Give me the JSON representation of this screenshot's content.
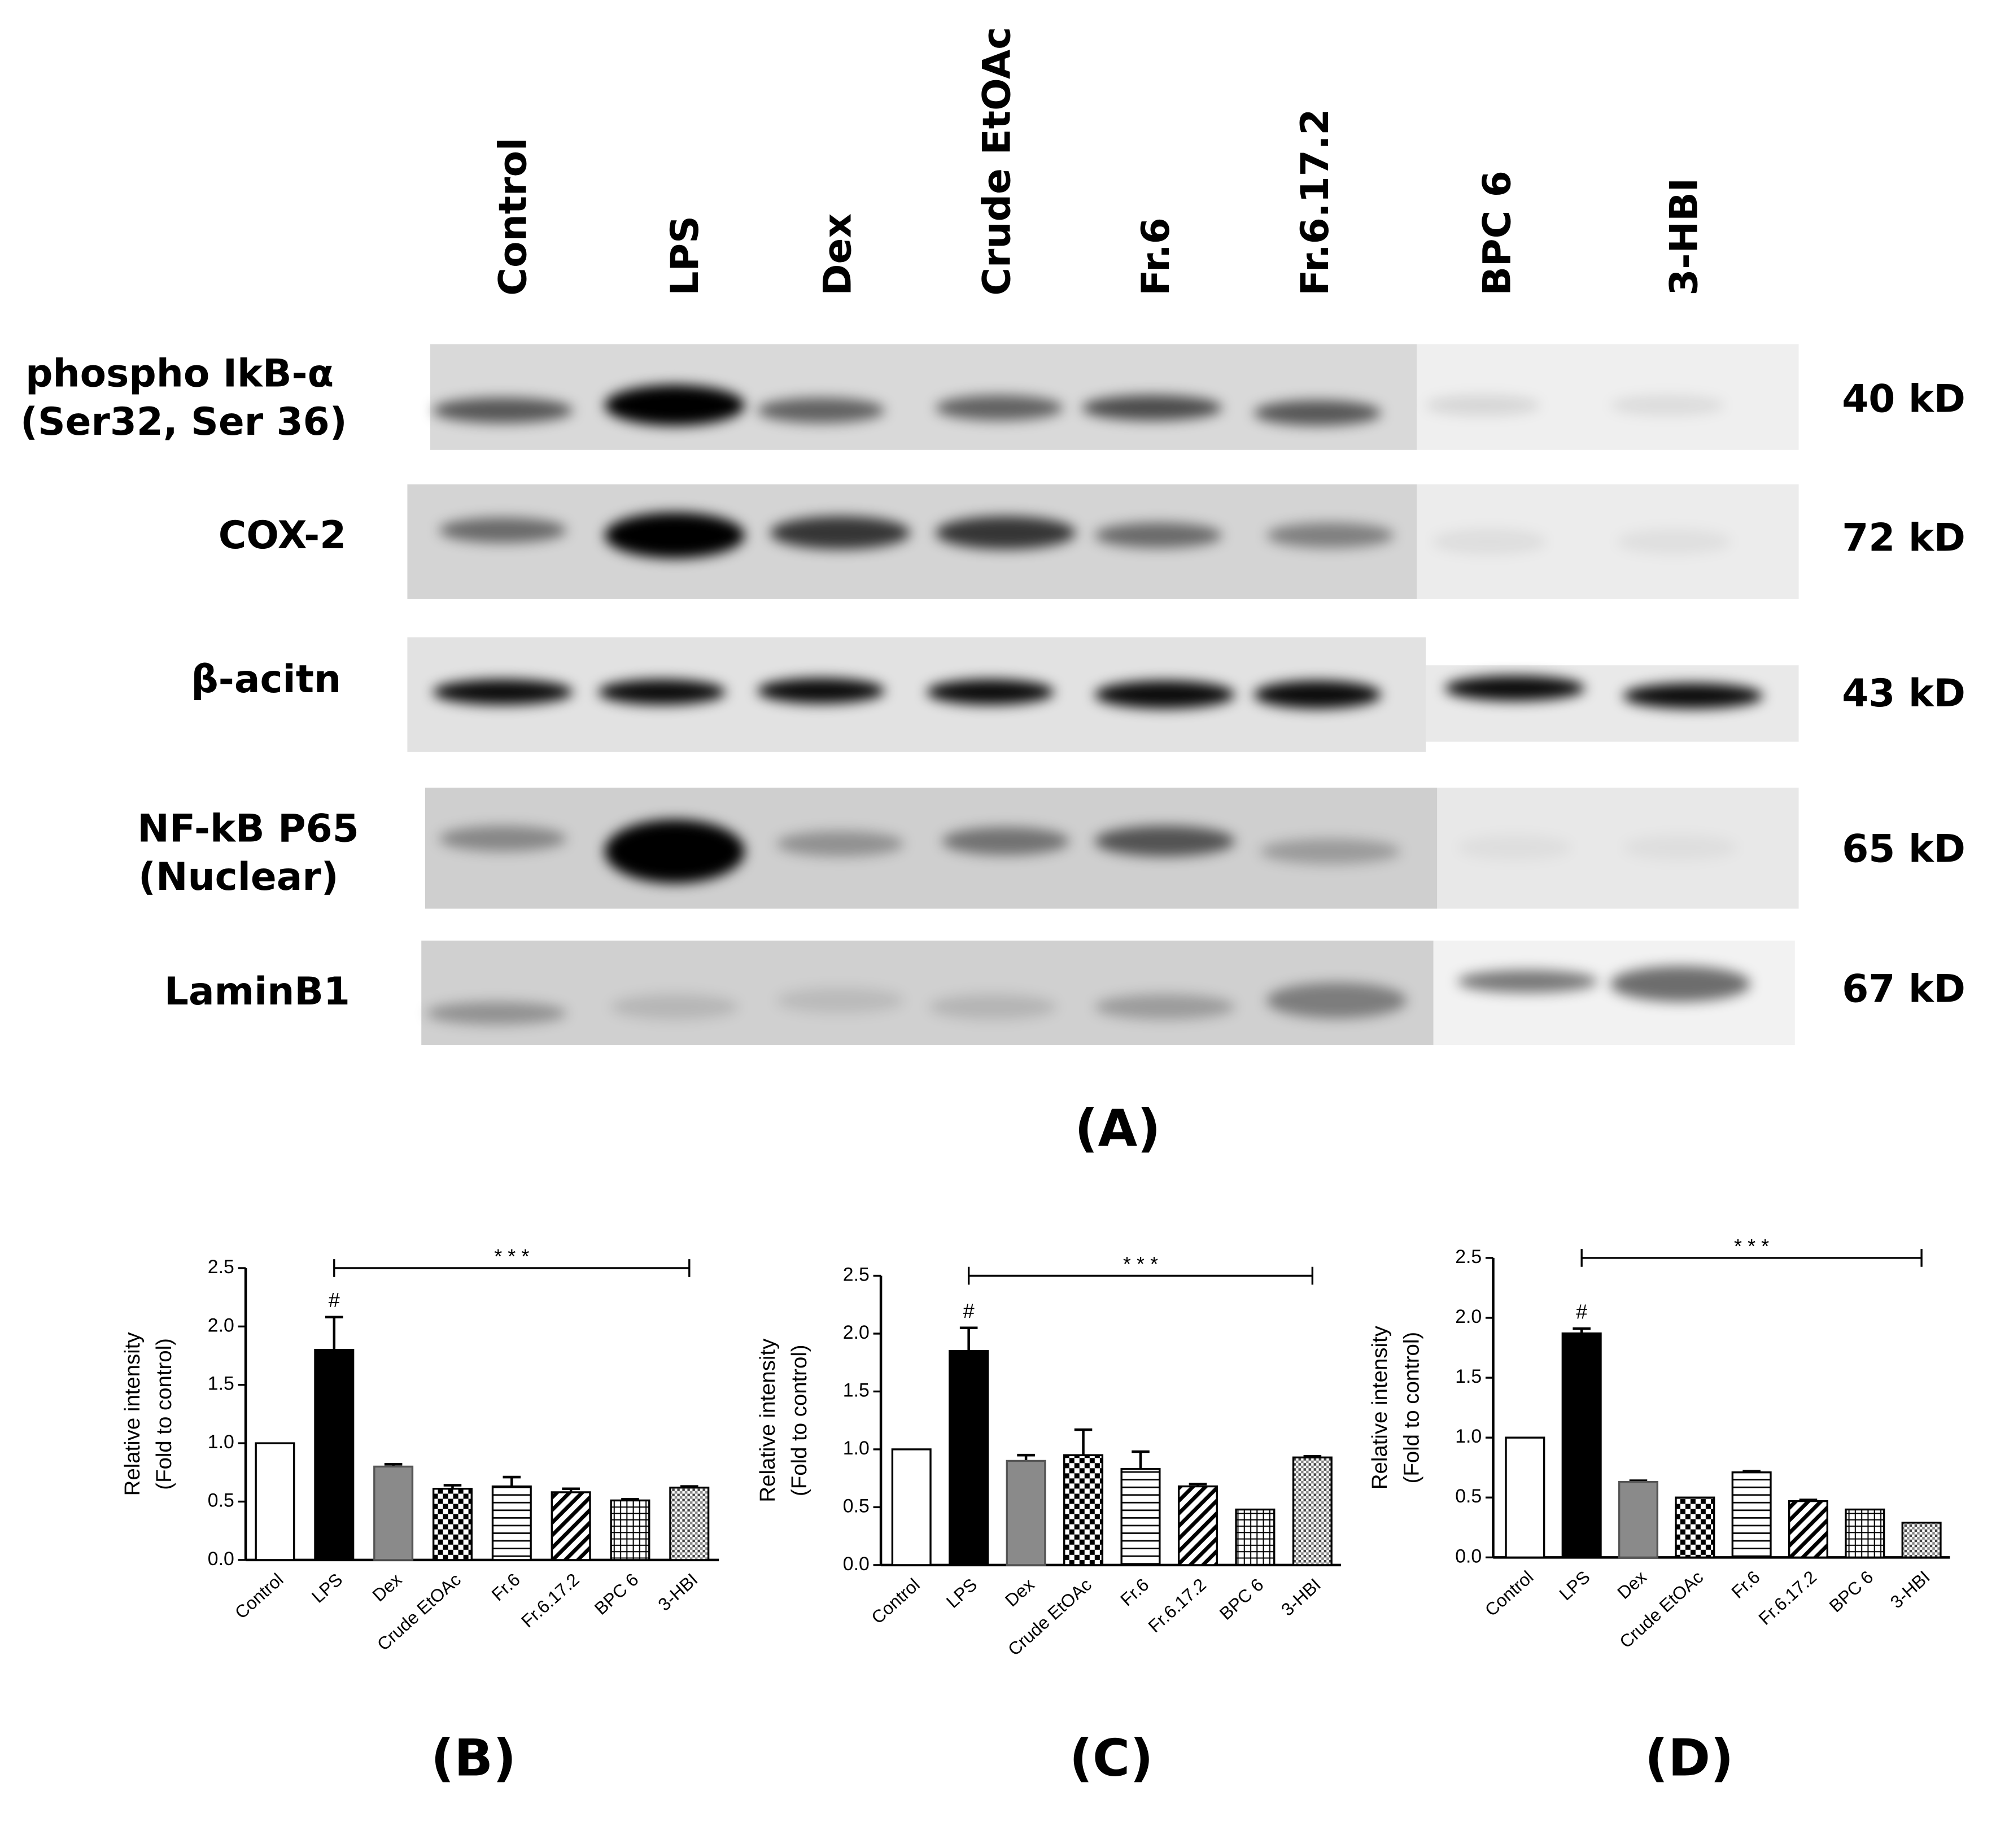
{
  "blot": {
    "lanes": [
      "Control",
      "LPS",
      "Dex",
      "Crude EtOAc",
      "Fr.6",
      "Fr.6.17.2",
      "BPC 6",
      "3-HBI"
    ],
    "rows": [
      {
        "protein": [
          "phospho IkB-α",
          "(Ser32, Ser 36)"
        ],
        "size": "40 kD"
      },
      {
        "protein": [
          "COX-2"
        ],
        "size": "72 kD"
      },
      {
        "protein": [
          "β-acitn"
        ],
        "size": "43 kD"
      },
      {
        "protein": [
          "NF-kB P65",
          "(Nuclear)"
        ],
        "size": "65 kD"
      },
      {
        "protein": [
          "LaminB1"
        ],
        "size": "67 kD"
      }
    ],
    "panel": "(A)"
  },
  "chart_data": [
    {
      "type": "bar",
      "panel": "(B)",
      "ylabel": [
        "Relative intensity",
        "(Fold to control)"
      ],
      "categories": [
        "Control",
        "LPS",
        "Dex",
        "Crude EtOAc",
        "Fr.6",
        "Fr.6.17.2",
        "BPC 6",
        "3-HBI"
      ],
      "values": [
        1.0,
        1.8,
        0.8,
        0.61,
        0.63,
        0.58,
        0.51,
        0.62
      ],
      "errors": [
        0,
        0.28,
        0.02,
        0.03,
        0.08,
        0.03,
        0.01,
        0.01
      ],
      "ylim": [
        0,
        2.5
      ],
      "yticks": [
        {
          "value": 0,
          "label": "0.0"
        },
        0.5,
        {
          "value": 1,
          "label": "1.0"
        },
        1.5,
        {
          "value": 2,
          "label": "2.0"
        },
        2.5
      ],
      "annotations": {
        "marker": "#",
        "significance": "* * *"
      }
    },
    {
      "type": "bar",
      "panel": "(C)",
      "ylabel": [
        "Relative intensity",
        "(Fold to control)"
      ],
      "categories": [
        "Control",
        "LPS",
        "Dex",
        "Crude EtOAc",
        "Fr.6",
        "Fr.6.17.2",
        "BPC 6",
        "3-HBI"
      ],
      "values": [
        1.0,
        1.85,
        0.9,
        0.95,
        0.83,
        0.68,
        0.48,
        0.93
      ],
      "errors": [
        0,
        0.2,
        0.05,
        0.22,
        0.15,
        0.02,
        0,
        0.01
      ],
      "ylim": [
        0,
        2.5
      ],
      "yticks": [
        {
          "value": 0,
          "label": "0.0"
        },
        0.5,
        {
          "value": 1,
          "label": "1.0"
        },
        1.5,
        {
          "value": 2,
          "label": "2.0"
        },
        2.5
      ],
      "annotations": {
        "marker": "#",
        "significance": "* * *"
      }
    },
    {
      "type": "bar",
      "panel": "(D)",
      "ylabel": [
        "Relative intensity",
        "(Fold to control)"
      ],
      "categories": [
        "Control",
        "LPS",
        "Dex",
        "Crude EtOAc",
        "Fr.6",
        "Fr.6.17.2",
        "BPC 6",
        "3-HBI"
      ],
      "values": [
        1.0,
        1.87,
        0.63,
        0.5,
        0.71,
        0.47,
        0.4,
        0.29
      ],
      "errors": [
        0,
        0.04,
        0.01,
        0,
        0.01,
        0.01,
        0,
        0
      ],
      "ylim": [
        0,
        2.5
      ],
      "yticks": [
        {
          "value": 0,
          "label": "0.0"
        },
        0.5,
        {
          "value": 1,
          "label": "1.0"
        },
        1.5,
        {
          "value": 2,
          "label": "2.0"
        },
        2.5
      ],
      "annotations": {
        "marker": "#",
        "significance": "* * *"
      }
    }
  ]
}
